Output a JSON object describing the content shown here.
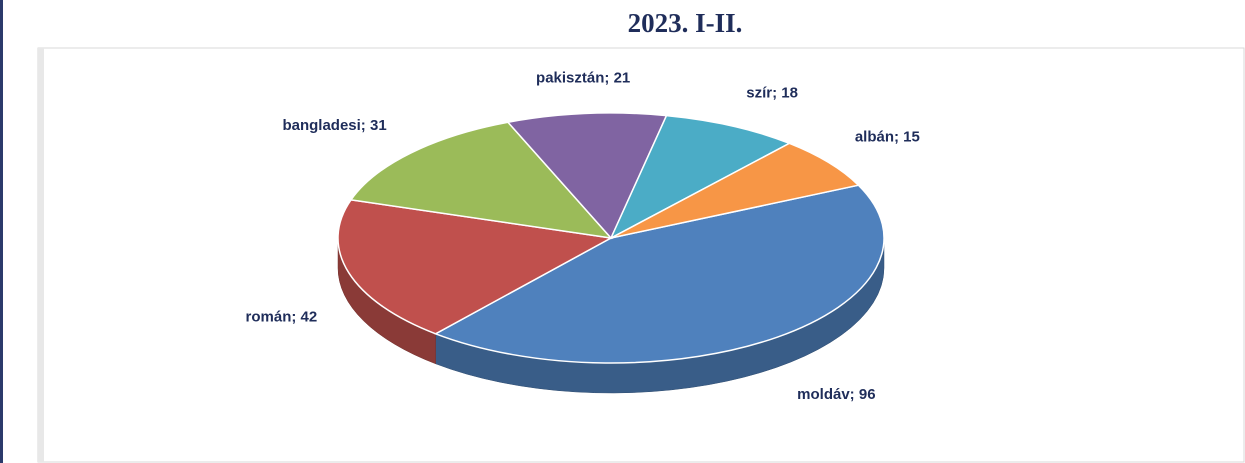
{
  "chart_data": {
    "type": "pie",
    "title": "2023. I-II.",
    "categories": [
      "moldáv",
      "román",
      "bangladesi",
      "pakisztán",
      "szír",
      "albán"
    ],
    "values": [
      96,
      42,
      31,
      21,
      18,
      15
    ],
    "value_labels": [
      "moldáv; 96",
      "román; 42",
      "bangladesi; 31",
      "pakisztán; 21",
      "szír; 18",
      "albán; 15"
    ],
    "colors": [
      "#4f81bd",
      "#c0504d",
      "#9bbb59",
      "#8064a2",
      "#4bacc6",
      "#f79646"
    ]
  }
}
